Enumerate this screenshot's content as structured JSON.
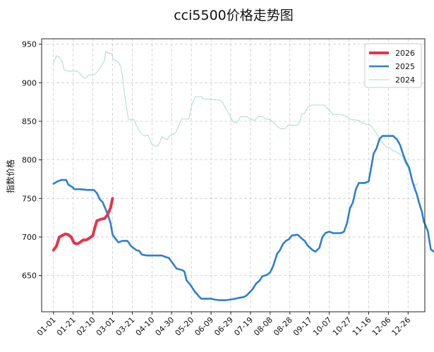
{
  "chart_data": {
    "type": "line",
    "title": "cci5500价格走势图",
    "ylabel": "指数价格",
    "xlabel": "",
    "x_ticks": [
      "01-01",
      "01-21",
      "02-10",
      "03-01",
      "03-21",
      "04-10",
      "04-30",
      "05-20",
      "06-09",
      "06-29",
      "07-19",
      "08-08",
      "08-28",
      "09-17",
      "10-07",
      "10-27",
      "11-16",
      "12-06",
      "12-26"
    ],
    "y_ticks": [
      650,
      700,
      750,
      800,
      850,
      900,
      950
    ],
    "ylim": [
      603,
      957
    ],
    "xlim": [
      -12,
      377
    ],
    "grid": true,
    "legend_position": "top-right",
    "series": [
      {
        "name": "2026",
        "color": "#e8334b",
        "points": [
          [
            0,
            683
          ],
          [
            3,
            688
          ],
          [
            6,
            700
          ],
          [
            9,
            702
          ],
          [
            12,
            704
          ],
          [
            15,
            703
          ],
          [
            18,
            700
          ],
          [
            21,
            692
          ],
          [
            24,
            691
          ],
          [
            27,
            693
          ],
          [
            30,
            696
          ],
          [
            33,
            696
          ],
          [
            36,
            698
          ],
          [
            40,
            702
          ],
          [
            42,
            712
          ],
          [
            44,
            721
          ],
          [
            48,
            723
          ],
          [
            52,
            724
          ],
          [
            55,
            729
          ],
          [
            58,
            738
          ],
          [
            60,
            750
          ]
        ]
      },
      {
        "name": "2025",
        "color": "#2b7fd4",
        "points": [
          [
            0,
            769
          ],
          [
            4,
            772
          ],
          [
            8,
            774
          ],
          [
            13,
            774
          ],
          [
            15,
            768
          ],
          [
            19,
            765
          ],
          [
            21,
            762
          ],
          [
            27,
            762
          ],
          [
            35,
            761
          ],
          [
            41,
            761
          ],
          [
            44,
            757
          ],
          [
            47,
            749
          ],
          [
            50,
            745
          ],
          [
            55,
            730
          ],
          [
            58,
            718
          ],
          [
            60,
            703
          ],
          [
            64,
            696
          ],
          [
            66,
            693
          ],
          [
            70,
            695
          ],
          [
            75,
            695
          ],
          [
            79,
            688
          ],
          [
            84,
            683
          ],
          [
            87,
            682
          ],
          [
            90,
            677
          ],
          [
            95,
            676
          ],
          [
            103,
            676
          ],
          [
            110,
            676
          ],
          [
            114,
            674
          ],
          [
            117,
            673
          ],
          [
            121,
            666
          ],
          [
            125,
            659
          ],
          [
            131,
            657
          ],
          [
            133,
            655
          ],
          [
            135,
            644
          ],
          [
            139,
            638
          ],
          [
            143,
            630
          ],
          [
            147,
            624
          ],
          [
            150,
            620
          ],
          [
            155,
            620
          ],
          [
            160,
            620
          ],
          [
            163,
            619
          ],
          [
            168,
            618
          ],
          [
            175,
            618
          ],
          [
            180,
            619
          ],
          [
            185,
            620
          ],
          [
            188,
            621
          ],
          [
            193,
            622
          ],
          [
            196,
            624
          ],
          [
            202,
            632
          ],
          [
            206,
            640
          ],
          [
            209,
            643
          ],
          [
            212,
            649
          ],
          [
            217,
            651
          ],
          [
            220,
            654
          ],
          [
            223,
            662
          ],
          [
            227,
            678
          ],
          [
            230,
            683
          ],
          [
            233,
            691
          ],
          [
            236,
            695
          ],
          [
            239,
            697
          ],
          [
            242,
            702
          ],
          [
            248,
            703
          ],
          [
            252,
            698
          ],
          [
            255,
            695
          ],
          [
            258,
            689
          ],
          [
            263,
            683
          ],
          [
            266,
            681
          ],
          [
            270,
            686
          ],
          [
            273,
            700
          ],
          [
            276,
            705
          ],
          [
            280,
            707
          ],
          [
            284,
            705
          ],
          [
            292,
            705
          ],
          [
            295,
            707
          ],
          [
            298,
            718
          ],
          [
            301,
            737
          ],
          [
            304,
            745
          ],
          [
            307,
            762
          ],
          [
            310,
            770
          ],
          [
            316,
            770
          ],
          [
            320,
            772
          ],
          [
            322,
            786
          ],
          [
            325,
            808
          ],
          [
            328,
            815
          ],
          [
            331,
            827
          ],
          [
            334,
            831
          ],
          [
            345,
            831
          ],
          [
            349,
            826
          ],
          [
            352,
            819
          ],
          [
            355,
            807
          ],
          [
            358,
            797
          ],
          [
            361,
            790
          ],
          [
            364,
            774
          ],
          [
            367,
            762
          ],
          [
            369,
            755
          ],
          [
            371,
            745
          ],
          [
            374,
            733
          ],
          [
            376,
            720
          ],
          [
            380,
            708
          ],
          [
            383,
            684
          ],
          [
            386,
            681
          ],
          [
            389,
            682
          ]
        ]
      },
      {
        "name": "2024",
        "color": "#a8dccb",
        "points": [
          [
            0,
            925
          ],
          [
            3,
            935
          ],
          [
            6,
            933
          ],
          [
            9,
            927
          ],
          [
            11,
            916
          ],
          [
            16,
            915
          ],
          [
            24,
            915
          ],
          [
            27,
            912
          ],
          [
            30,
            907
          ],
          [
            33,
            906
          ],
          [
            36,
            910
          ],
          [
            42,
            911
          ],
          [
            45,
            915
          ],
          [
            50,
            925
          ],
          [
            52,
            929
          ],
          [
            53,
            941
          ],
          [
            56,
            938
          ],
          [
            59,
            938
          ],
          [
            61,
            930
          ],
          [
            65,
            928
          ],
          [
            68,
            922
          ],
          [
            70,
            909
          ],
          [
            72,
            886
          ],
          [
            74,
            870
          ],
          [
            76,
            853
          ],
          [
            78,
            852
          ],
          [
            82,
            852
          ],
          [
            84,
            845
          ],
          [
            88,
            836
          ],
          [
            92,
            831
          ],
          [
            96,
            832
          ],
          [
            100,
            820
          ],
          [
            103,
            818
          ],
          [
            106,
            818
          ],
          [
            108,
            823
          ],
          [
            110,
            830
          ],
          [
            115,
            826
          ],
          [
            118,
            831
          ],
          [
            121,
            833
          ],
          [
            124,
            835
          ],
          [
            126,
            841
          ],
          [
            130,
            853
          ],
          [
            136,
            853
          ],
          [
            138,
            855
          ],
          [
            140,
            870
          ],
          [
            144,
            882
          ],
          [
            150,
            882
          ],
          [
            152,
            879
          ],
          [
            158,
            879
          ],
          [
            164,
            878
          ],
          [
            170,
            877
          ],
          [
            174,
            869
          ],
          [
            178,
            860
          ],
          [
            182,
            850
          ],
          [
            186,
            848
          ],
          [
            188,
            852
          ],
          [
            190,
            856
          ],
          [
            196,
            856
          ],
          [
            200,
            853
          ],
          [
            204,
            851
          ],
          [
            208,
            856
          ],
          [
            212,
            856
          ],
          [
            216,
            853
          ],
          [
            220,
            852
          ],
          [
            224,
            848
          ],
          [
            228,
            842
          ],
          [
            232,
            840
          ],
          [
            236,
            841
          ],
          [
            238,
            845
          ],
          [
            244,
            845
          ],
          [
            248,
            845
          ],
          [
            250,
            850
          ],
          [
            252,
            860
          ],
          [
            255,
            860
          ],
          [
            258,
            868
          ],
          [
            262,
            871
          ],
          [
            270,
            871
          ],
          [
            274,
            871
          ],
          [
            276,
            870
          ],
          [
            280,
            864
          ],
          [
            284,
            859
          ],
          [
            290,
            859
          ],
          [
            294,
            858
          ],
          [
            298,
            856
          ],
          [
            302,
            852
          ],
          [
            306,
            852
          ],
          [
            310,
            851
          ],
          [
            314,
            848
          ],
          [
            318,
            846
          ],
          [
            322,
            845
          ],
          [
            326,
            838
          ],
          [
            330,
            830
          ],
          [
            332,
            825
          ],
          [
            334,
            822
          ],
          [
            337,
            818
          ],
          [
            339,
            816
          ],
          [
            342,
            816
          ],
          [
            344,
            812
          ],
          [
            347,
            811
          ],
          [
            351,
            808
          ],
          [
            354,
            805
          ],
          [
            357,
            796
          ],
          [
            360,
            790
          ],
          [
            363,
            778
          ],
          [
            365,
            768
          ],
          [
            368,
            767
          ],
          [
            370,
            770
          ]
        ]
      }
    ]
  }
}
